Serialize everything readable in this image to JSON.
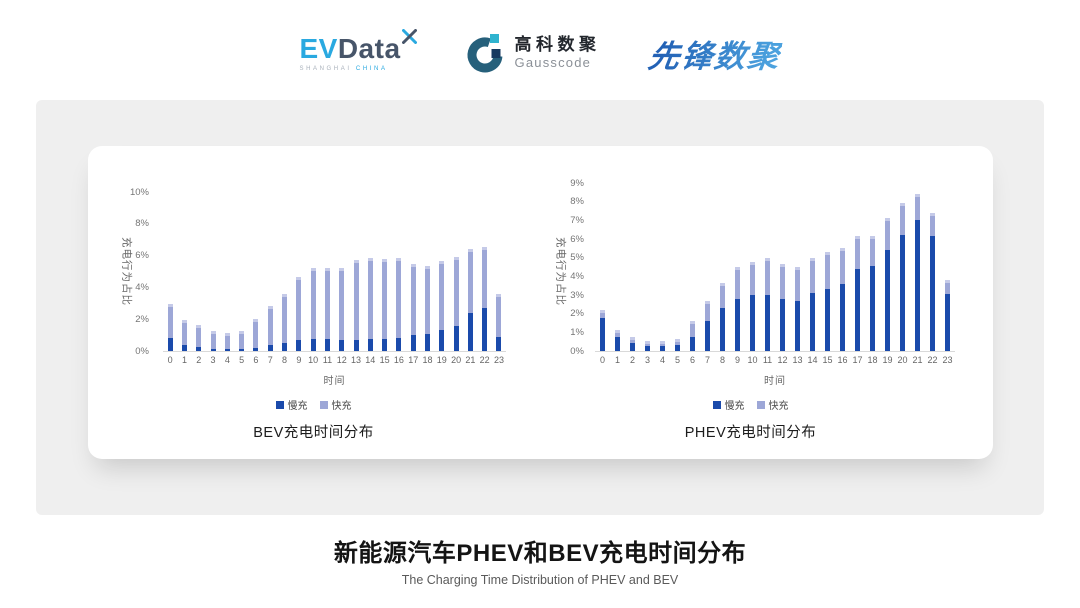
{
  "header": {
    "evdata": {
      "ev": "EV",
      "data": "Data",
      "sub_left": "SHANGHAI",
      "sub_right": "CHINA"
    },
    "gausscode": {
      "name_cn": "高科数聚",
      "name_en": "Gausscode"
    },
    "pioneer": {
      "name": "先锋数聚"
    }
  },
  "colors": {
    "panel-gray": "#efefef",
    "axis-line": "#d9d9d9",
    "tick-text": "#757575",
    "slow-charge": "#1a4aab",
    "fast-charge": "#9da7d7",
    "fast-cap": "#c5cae8",
    "evdata-cyan": "#2aa9e0",
    "evdata-dark": "#475569",
    "gauss-dark": "#26607b",
    "gauss-cyan": "#2fb3cf",
    "gauss-navy": "#173a60",
    "pioneer-dark": "#2261b5",
    "pioneer-light": "#4ba1de"
  },
  "chart_data": [
    {
      "type": "bar",
      "stacked": true,
      "title": "BEV充电时间分布",
      "ylabel": "充电行为占比",
      "xlabel": "时间",
      "ylim": [
        0,
        10
      ],
      "grid": false,
      "legend_position": "bottom",
      "yticks": [
        {
          "v": 0,
          "label": "0%"
        },
        {
          "v": 2,
          "label": "2%"
        },
        {
          "v": 4,
          "label": "4%"
        },
        {
          "v": 6,
          "label": "6%"
        },
        {
          "v": 8,
          "label": "8%"
        },
        {
          "v": 10,
          "label": "10%"
        }
      ],
      "categories": [
        "0",
        "1",
        "2",
        "3",
        "4",
        "5",
        "6",
        "7",
        "8",
        "9",
        "10",
        "11",
        "12",
        "13",
        "14",
        "15",
        "16",
        "17",
        "18",
        "19",
        "20",
        "21",
        "22",
        "23"
      ],
      "series": [
        {
          "key": "slow",
          "name": "慢充",
          "color": "#1a4aab",
          "values": [
            0.85,
            0.4,
            0.25,
            0.15,
            0.15,
            0.15,
            0.2,
            0.4,
            0.5,
            0.7,
            0.75,
            0.75,
            0.7,
            0.7,
            0.75,
            0.75,
            0.85,
            1.0,
            1.1,
            1.3,
            1.6,
            2.4,
            2.7,
            0.9
          ]
        },
        {
          "key": "fast",
          "name": "快充",
          "color": "#9da7d7",
          "values": [
            2.1,
            1.55,
            1.4,
            1.1,
            1.0,
            1.1,
            1.8,
            2.45,
            3.1,
            3.95,
            4.45,
            4.5,
            4.55,
            5.0,
            5.1,
            5.05,
            5.0,
            4.5,
            4.25,
            4.35,
            4.3,
            4.0,
            3.85,
            2.7
          ]
        }
      ]
    },
    {
      "type": "bar",
      "stacked": true,
      "title": "PHEV充电时间分布",
      "ylabel": "充电行为占比",
      "xlabel": "时间",
      "ylim": [
        0,
        9
      ],
      "grid": false,
      "legend_position": "bottom",
      "yticks": [
        {
          "v": 0,
          "label": "0%"
        },
        {
          "v": 1,
          "label": "1%"
        },
        {
          "v": 2,
          "label": "2%"
        },
        {
          "v": 3,
          "label": "3%"
        },
        {
          "v": 4,
          "label": "4%"
        },
        {
          "v": 5,
          "label": "5%"
        },
        {
          "v": 6,
          "label": "6%"
        },
        {
          "v": 7,
          "label": "7%"
        },
        {
          "v": 8,
          "label": "8%"
        },
        {
          "v": 9,
          "label": "9%"
        }
      ],
      "categories": [
        "0",
        "1",
        "2",
        "3",
        "4",
        "5",
        "6",
        "7",
        "8",
        "9",
        "10",
        "11",
        "12",
        "13",
        "14",
        "15",
        "16",
        "17",
        "18",
        "19",
        "20",
        "21",
        "22",
        "23"
      ],
      "series": [
        {
          "key": "slow",
          "name": "慢充",
          "color": "#1a4aab",
          "values": [
            1.75,
            0.75,
            0.45,
            0.25,
            0.25,
            0.3,
            0.75,
            1.6,
            2.3,
            2.8,
            3.0,
            3.0,
            2.8,
            2.7,
            3.1,
            3.3,
            3.6,
            4.4,
            4.55,
            5.4,
            6.2,
            7.0,
            6.15,
            3.05
          ]
        },
        {
          "key": "fast",
          "name": "快充",
          "color": "#9da7d7",
          "values": [
            0.45,
            0.4,
            0.3,
            0.3,
            0.3,
            0.35,
            0.85,
            1.1,
            1.35,
            1.7,
            1.75,
            2.0,
            1.85,
            1.8,
            1.9,
            2.0,
            1.9,
            1.75,
            1.6,
            1.7,
            1.75,
            1.4,
            1.25,
            0.75
          ]
        }
      ]
    }
  ],
  "footer": {
    "title": "新能源汽车PHEV和BEV充电时间分布",
    "subtitle": "The Charging Time Distribution of PHEV and BEV"
  }
}
